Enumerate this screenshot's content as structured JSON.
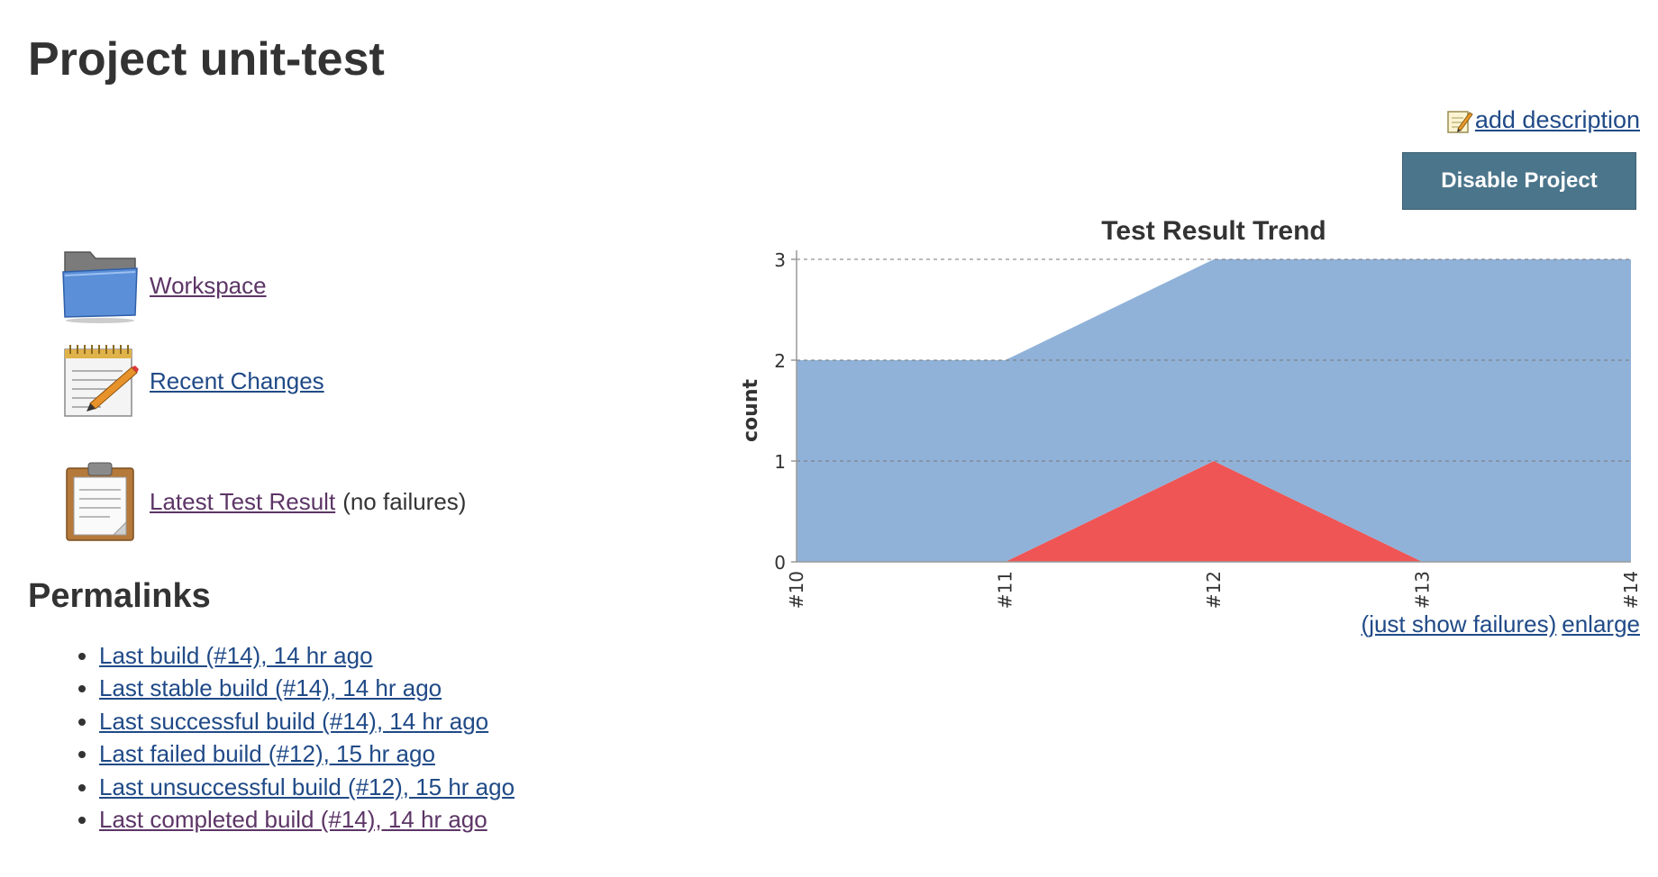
{
  "page": {
    "title": "Project unit-test"
  },
  "actions": {
    "add_description": "add description",
    "disable_project": "Disable Project"
  },
  "tasks": [
    {
      "label": "Workspace",
      "suffix": "",
      "icon": "folder-icon"
    },
    {
      "label": "Recent Changes",
      "suffix": "",
      "icon": "notepad-icon"
    },
    {
      "label": "Latest Test Result",
      "suffix": "(no failures)",
      "icon": "clipboard-icon"
    }
  ],
  "permalinks": {
    "heading": "Permalinks",
    "items": [
      "Last build (#14), 14 hr ago",
      "Last stable build (#14), 14 hr ago",
      "Last successful build (#14), 14 hr ago",
      "Last failed build (#12), 15 hr ago",
      "Last unsuccessful build (#12), 15 hr ago",
      "Last completed build (#14), 14 hr ago"
    ]
  },
  "chart_links": {
    "just_show_failures": "(just show failures)",
    "enlarge": "enlarge"
  },
  "colors": {
    "passed": "#90b2d8",
    "failed": "#ef5555",
    "button": "#4b758b",
    "link": "#204a87"
  },
  "chart_data": {
    "type": "area",
    "title": "Test Result Trend",
    "ylabel": "count",
    "xlabel": "",
    "categories": [
      "#10",
      "#11",
      "#12",
      "#13",
      "#14"
    ],
    "ylim": [
      0,
      3
    ],
    "yticks": [
      0,
      1,
      2,
      3
    ],
    "stacked": true,
    "grid": true,
    "series": [
      {
        "values": [
          0,
          0,
          1,
          0,
          0
        ],
        "color": "#ef5555"
      },
      {
        "values": [
          2,
          2,
          2,
          3,
          3
        ],
        "color": "#90b2d8"
      }
    ]
  }
}
